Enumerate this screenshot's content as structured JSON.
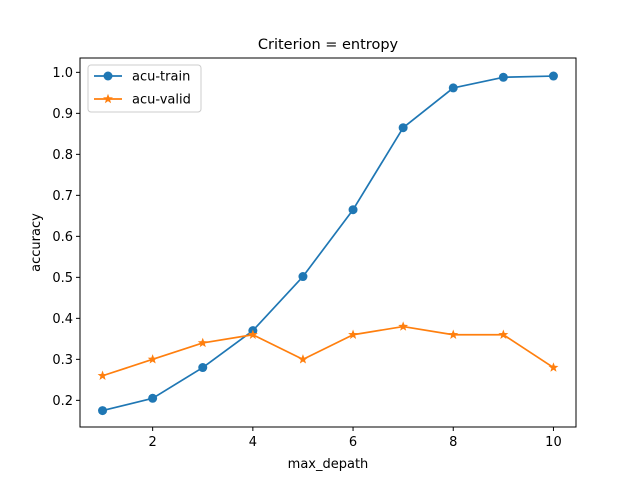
{
  "chart_data": {
    "type": "line",
    "title": "Criterion = entropy",
    "xlabel": "max_depath",
    "ylabel": "accuracy",
    "xlim": [
      0.55,
      10.45
    ],
    "ylim": [
      0.135,
      1.035
    ],
    "x_ticks": [
      2,
      4,
      6,
      8,
      10
    ],
    "y_ticks": [
      0.2,
      0.3,
      0.4,
      0.5,
      0.6,
      0.7,
      0.8,
      0.9,
      1.0
    ],
    "x_tick_labels": [
      "2",
      "4",
      "6",
      "8",
      "10"
    ],
    "y_tick_labels": [
      "0.2",
      "0.3",
      "0.4",
      "0.5",
      "0.6",
      "0.7",
      "0.8",
      "0.9",
      "1.0"
    ],
    "grid": false,
    "legend_position": "top-left",
    "x": [
      1,
      2,
      3,
      4,
      5,
      6,
      7,
      8,
      9,
      10
    ],
    "series": [
      {
        "name": "acu-train",
        "marker": "circle",
        "color": "#1f77b4",
        "values": [
          0.175,
          0.205,
          0.28,
          0.37,
          0.502,
          0.665,
          0.865,
          0.962,
          0.988,
          0.991
        ]
      },
      {
        "name": "acu-valid",
        "marker": "star",
        "color": "#ff7f0e",
        "values": [
          0.26,
          0.3,
          0.34,
          0.36,
          0.3,
          0.36,
          0.38,
          0.36,
          0.36,
          0.28
        ]
      }
    ]
  }
}
